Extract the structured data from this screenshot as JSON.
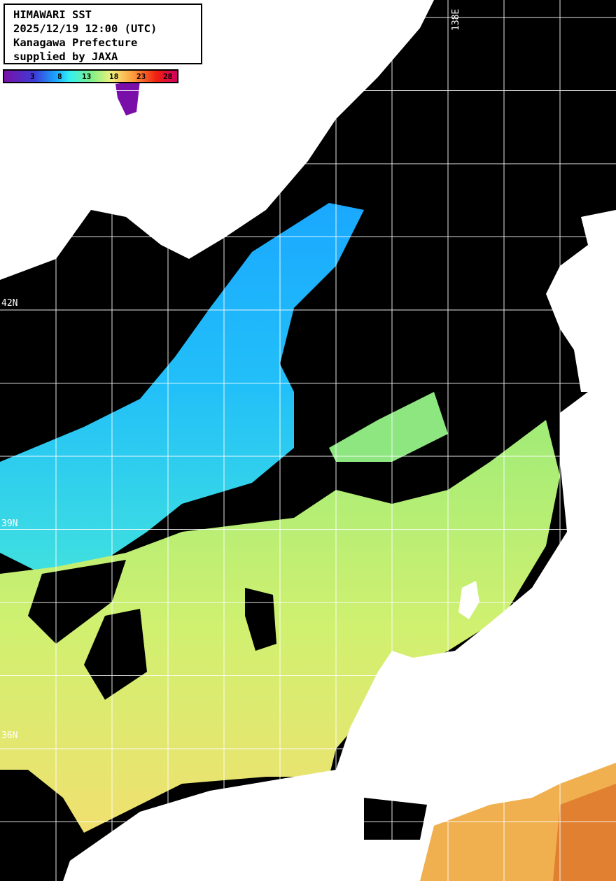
{
  "header": {
    "title": "HIMAWARI SST",
    "datetime": "2025/12/19 12:00 (UTC)",
    "organization": "Kanagawa Prefecture",
    "credit": "supplied by JAXA"
  },
  "colorbar": {
    "unit_ticks": [
      "3",
      "8",
      "13",
      "18",
      "23",
      "28"
    ],
    "colors": [
      "#7a0ea8",
      "#3c3ed8",
      "#1aa8ff",
      "#35f0f0",
      "#7cf08a",
      "#f0f07a",
      "#ffa040",
      "#f02010",
      "#d00060"
    ]
  },
  "grid": {
    "latitude_labels": [
      "42N",
      "39N",
      "36N"
    ],
    "longitude_labels": [
      "138E"
    ]
  },
  "colors": {
    "land": "#ffffff",
    "no_data": "#000000",
    "grid": "#ffffff"
  }
}
